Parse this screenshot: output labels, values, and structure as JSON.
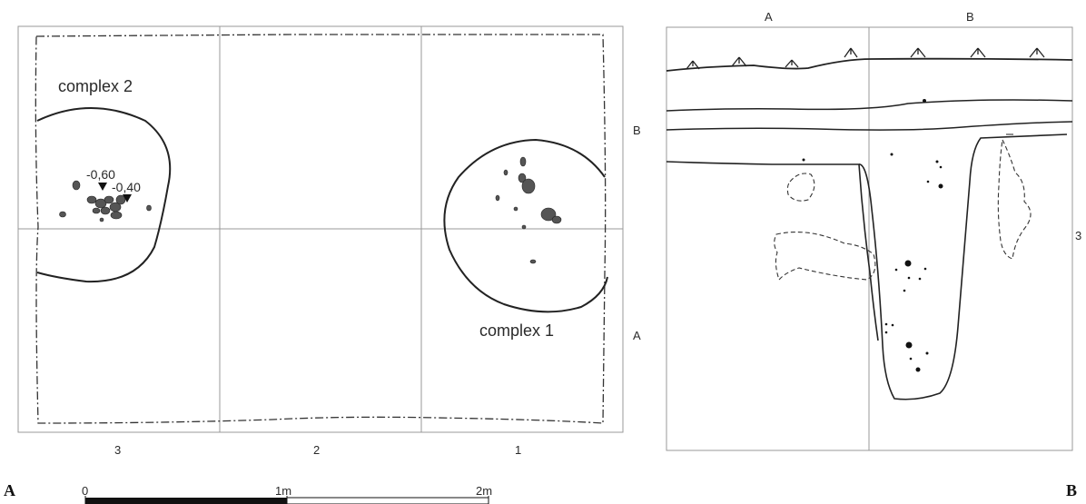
{
  "plan": {
    "grid_labels_bottom": [
      "3",
      "2",
      "1"
    ],
    "grid_labels_right": [
      "B",
      "A"
    ],
    "complex_2_label": "complex 2",
    "complex_1_label": "complex 1",
    "depth_label_1": "-0,60",
    "depth_label_2": "-0,40",
    "panel_label": "A"
  },
  "scale": {
    "tick_0": "0",
    "tick_1": "1m",
    "tick_2": "2m"
  },
  "section": {
    "labels_top": [
      "A",
      "B"
    ],
    "label_right": "3",
    "panel_label": "B"
  },
  "colors": {
    "line": "#2b2b2b",
    "grid": "#888888",
    "stone_fill": "#555555"
  }
}
